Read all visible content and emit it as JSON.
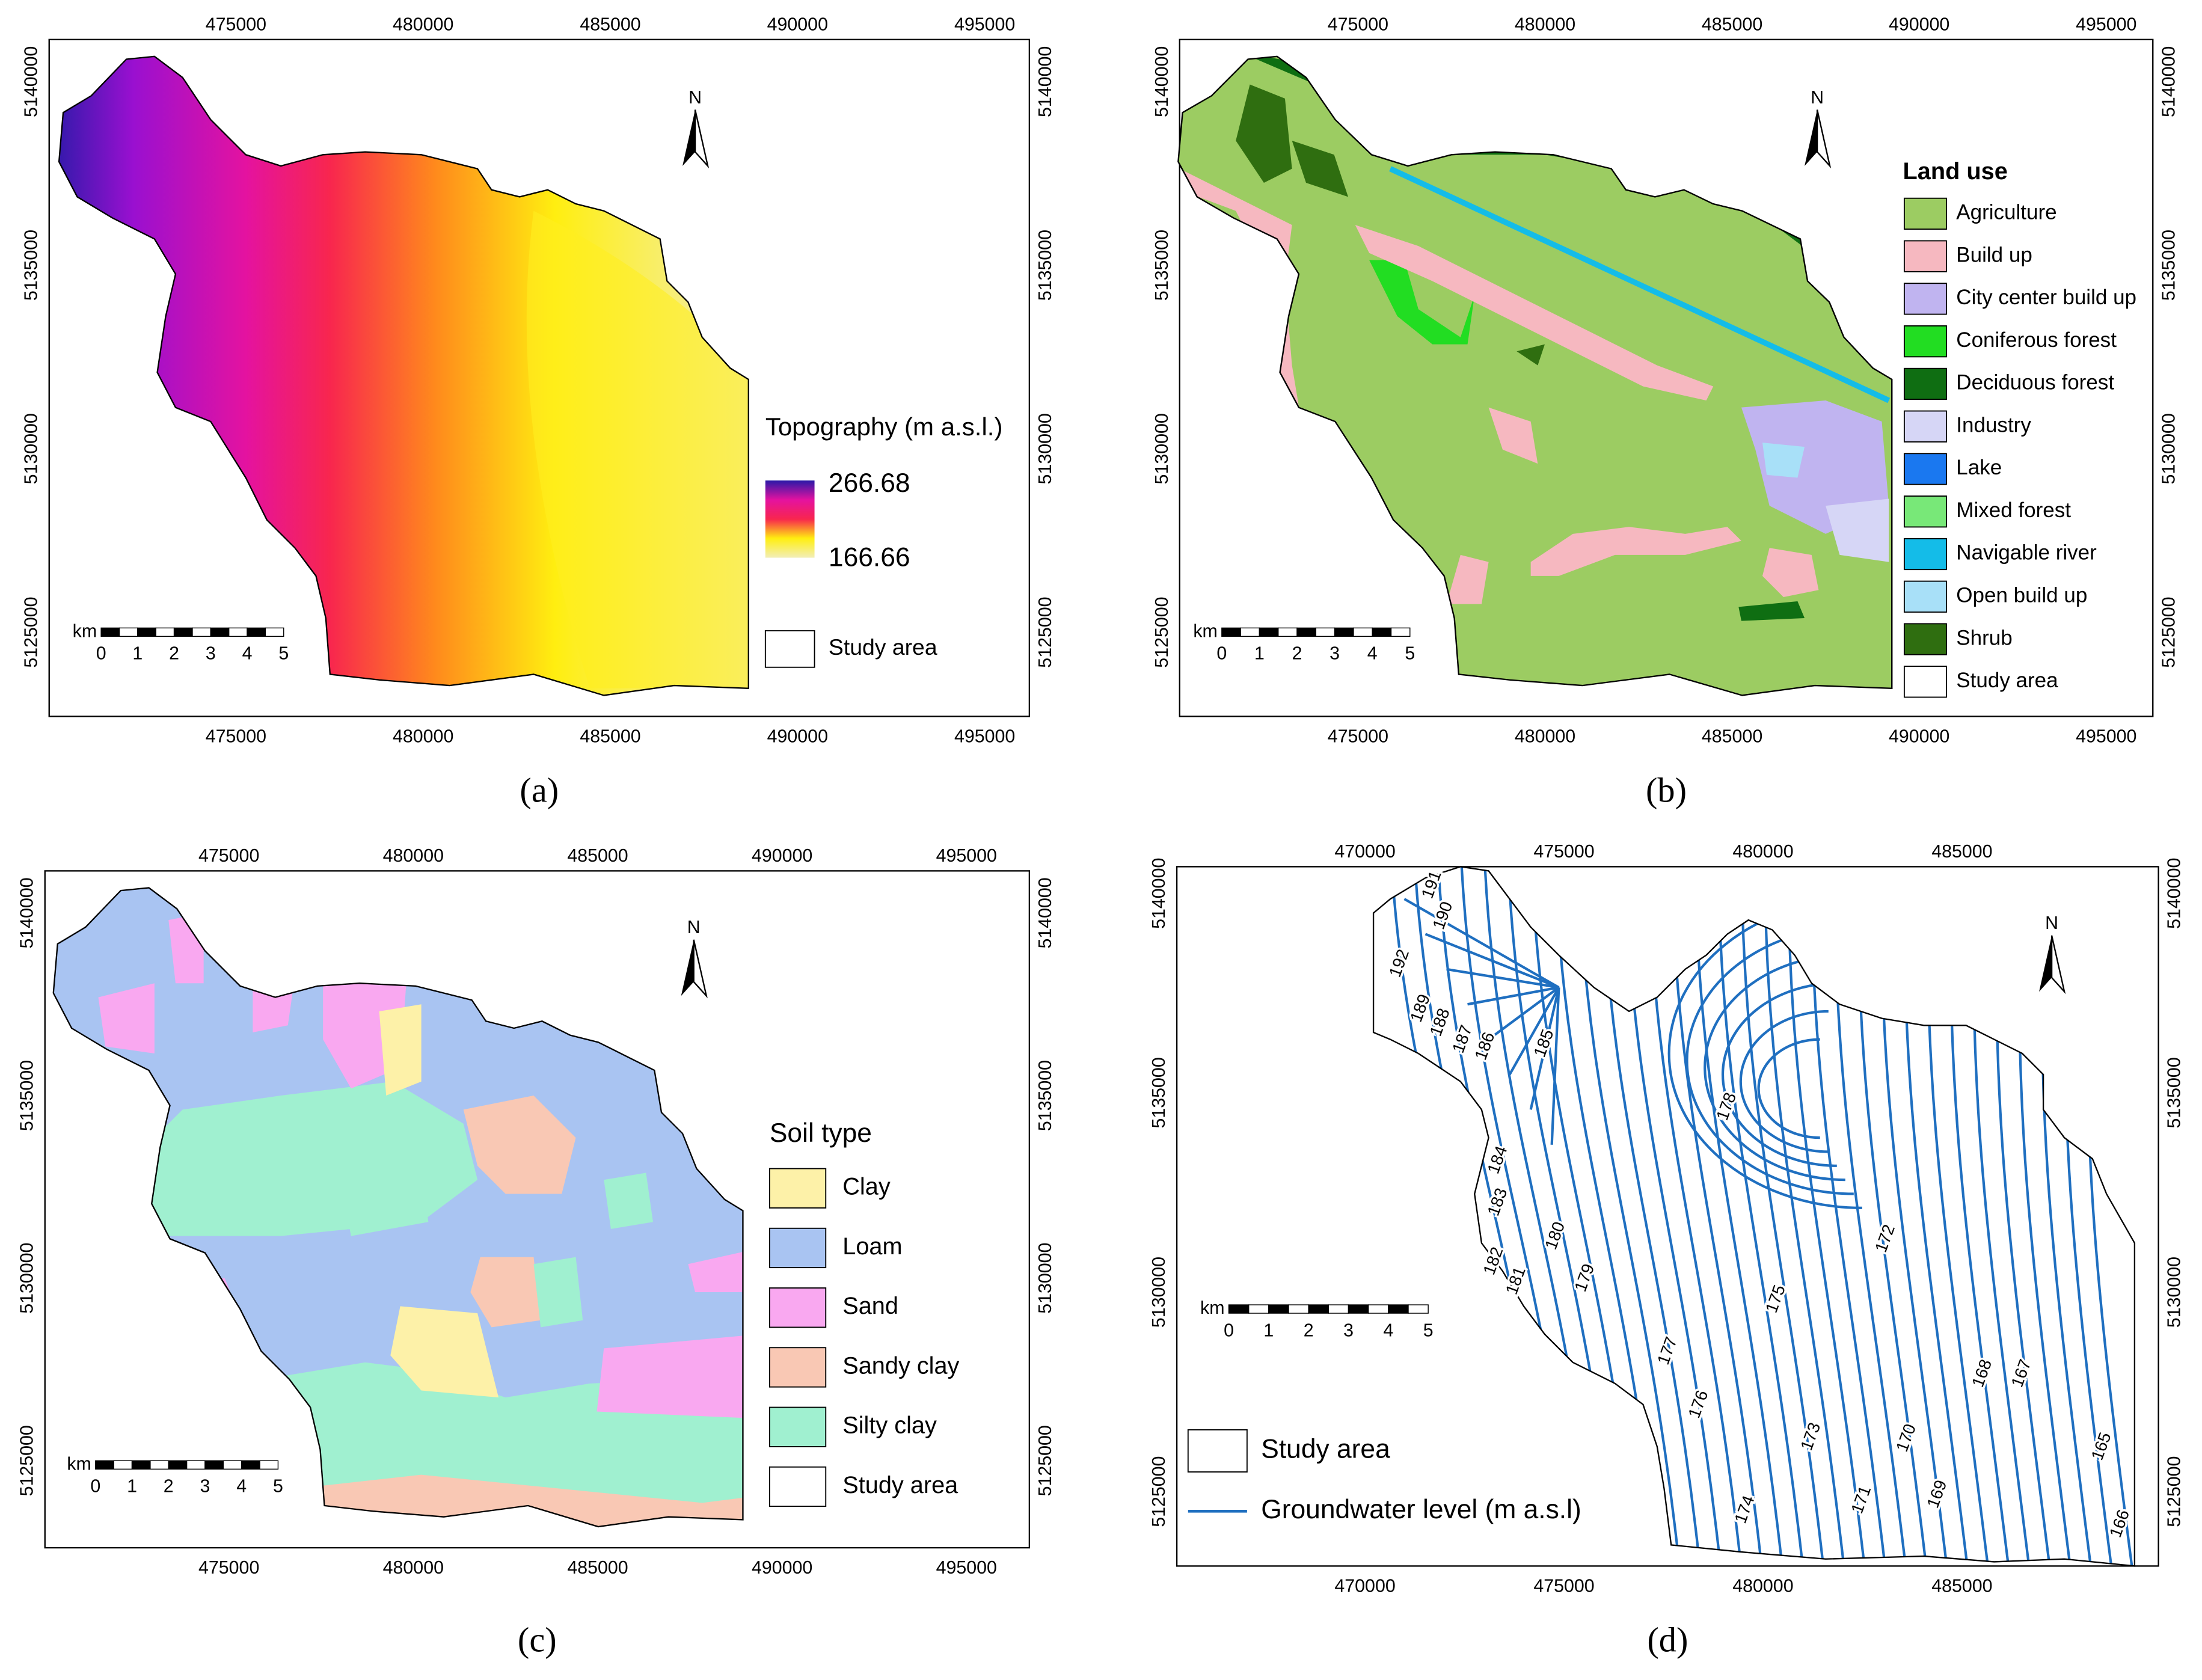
{
  "panels": [
    {
      "label": "(a)",
      "x_top": [
        475000,
        480000,
        485000,
        490000,
        495000
      ],
      "x_bottom": [
        475000,
        480000,
        485000,
        490000,
        495000
      ],
      "y_left": [
        5140000,
        5135000,
        5130000,
        5125000
      ],
      "y_right": [
        5140000,
        5135000,
        5130000,
        5125000
      ],
      "north": "N",
      "scale": {
        "unit": "km",
        "labels": [
          0,
          1,
          2,
          3,
          4,
          5
        ]
      },
      "legend": {
        "title": "Topography (m a.s.l.)",
        "max": "266.68",
        "min": "166.66",
        "items": [
          {
            "name": "Study area",
            "color": "#ffffff"
          }
        ]
      }
    },
    {
      "label": "(b)",
      "x_top": [
        475000,
        480000,
        485000,
        490000,
        495000
      ],
      "x_bottom": [
        475000,
        480000,
        485000,
        490000,
        495000
      ],
      "y_left": [
        5140000,
        5135000,
        5130000,
        5125000
      ],
      "y_right": [
        5140000,
        5135000,
        5130000,
        5125000
      ],
      "north": "N",
      "scale": {
        "unit": "km",
        "labels": [
          0,
          1,
          2,
          3,
          4,
          5
        ]
      },
      "legend": {
        "title": "Land use",
        "items": [
          {
            "name": "Agriculture",
            "color": "#9ccc62"
          },
          {
            "name": "Build up",
            "color": "#f6b8c0"
          },
          {
            "name": "City center build up",
            "color": "#c0b4f0"
          },
          {
            "name": "Coniferous forest",
            "color": "#22dd22"
          },
          {
            "name": "Deciduous forest",
            "color": "#0f6e12"
          },
          {
            "name": "Industry",
            "color": "#d6d6f6"
          },
          {
            "name": "Lake",
            "color": "#1a78f0"
          },
          {
            "name": "Mixed forest",
            "color": "#78e878"
          },
          {
            "name": "Navigable river",
            "color": "#14bce8"
          },
          {
            "name": "Open build up",
            "color": "#a8e0f8"
          },
          {
            "name": "Shrub",
            "color": "#2f6e10"
          },
          {
            "name": "Study area",
            "color": "#ffffff"
          }
        ]
      }
    },
    {
      "label": "(c)",
      "x_top": [
        475000,
        480000,
        485000,
        490000,
        495000
      ],
      "x_bottom": [
        475000,
        480000,
        485000,
        490000,
        495000
      ],
      "y_left": [
        5140000,
        5135000,
        5130000,
        5125000
      ],
      "y_right": [
        5140000,
        5135000,
        5130000,
        5125000
      ],
      "north": "N",
      "scale": {
        "unit": "km",
        "labels": [
          0,
          1,
          2,
          3,
          4,
          5
        ]
      },
      "legend": {
        "title": "Soil type",
        "items": [
          {
            "name": "Clay",
            "color": "#fdf1a8"
          },
          {
            "name": "Loam",
            "color": "#a9c4f2"
          },
          {
            "name": "Sand",
            "color": "#f9a8f0"
          },
          {
            "name": "Sandy clay",
            "color": "#f9c8b4"
          },
          {
            "name": "Silty clay",
            "color": "#a0f0d0"
          },
          {
            "name": "Study area",
            "color": "#ffffff"
          }
        ]
      }
    },
    {
      "label": "(d)",
      "x_top": [
        470000,
        475000,
        480000,
        485000
      ],
      "x_bottom": [
        470000,
        475000,
        480000,
        485000
      ],
      "y_left": [
        5140000,
        5135000,
        5130000,
        5125000
      ],
      "y_right": [
        5140000,
        5135000,
        5130000,
        5125000
      ],
      "north": "N",
      "scale": {
        "unit": "km",
        "labels": [
          0,
          1,
          2,
          3,
          4,
          5
        ]
      },
      "legend": {
        "items": [
          {
            "name": "Study area",
            "color": "#ffffff"
          },
          {
            "name": "Groundwater level (m a.s.l)",
            "color": "#1f6fc0",
            "line": true
          }
        ]
      },
      "contour_labels": [
        191,
        190,
        192,
        189,
        188,
        187,
        186,
        185,
        184,
        183,
        182,
        181,
        180,
        179,
        178,
        177,
        176,
        175,
        174,
        173,
        172,
        171,
        170,
        169,
        168,
        167,
        166,
        165
      ]
    }
  ]
}
